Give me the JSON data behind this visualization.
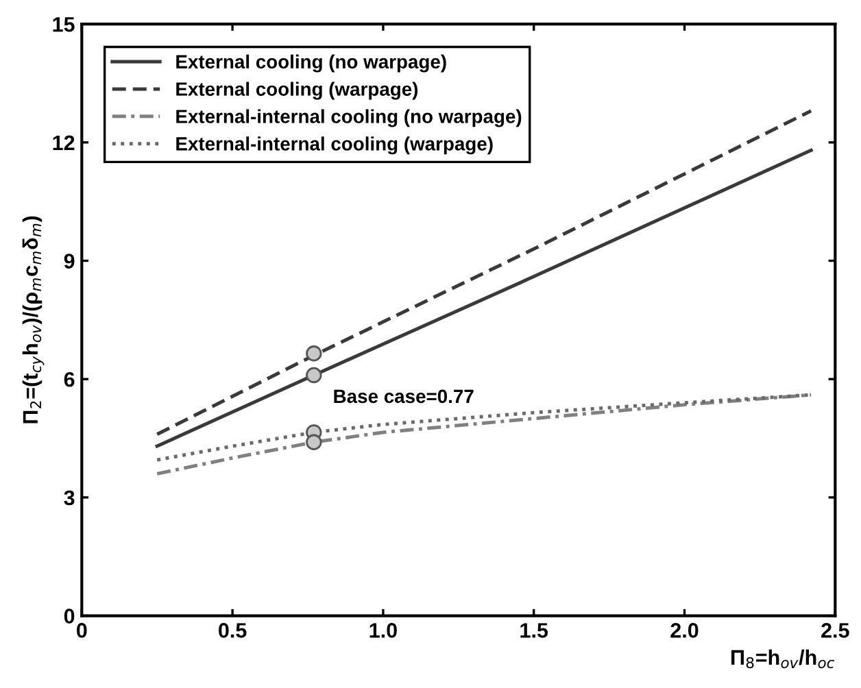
{
  "chart_data": {
    "type": "line",
    "xlabel": "Π$_{8}$=h$_{ov}$/h$_{oc}$",
    "ylabel": "Π$_{2}$=(t$_{cy}$h$_{ov}$)/(ρ$_{m}$c$_{m}$δ$_{m}$)",
    "xlim": [
      0,
      2.5
    ],
    "ylim": [
      0,
      15
    ],
    "xticks": [
      0,
      0.5,
      {
        "value": 1,
        "label": "1.0"
      },
      1.5,
      {
        "value": 2,
        "label": "2.0"
      },
      2.5
    ],
    "yticks": [
      0,
      3,
      6,
      9,
      12,
      15
    ],
    "grid": false,
    "legend": "top left",
    "series": [
      {
        "name": "External cooling (no warpage)",
        "color": "#3a3a3a",
        "line_style": "solid",
        "marker": "none",
        "x": [
          0.25,
          0.77,
          1.5,
          2.42
        ],
        "values": [
          4.3,
          6.1,
          8.6,
          11.8
        ]
      },
      {
        "name": "External cooling (warpage)",
        "color": "#3a3a3a",
        "line_style": "dashed",
        "marker": "none",
        "x": [
          0.25,
          0.77,
          1.5,
          2.42
        ],
        "values": [
          4.6,
          6.6,
          9.3,
          12.8
        ]
      },
      {
        "name": "External-internal cooling (no warpage)",
        "color": "#808080",
        "line_style": "dashdot",
        "marker": "none",
        "x": [
          0.25,
          0.5,
          0.77,
          1.0,
          1.5,
          2.0,
          2.42
        ],
        "values": [
          3.6,
          4.0,
          4.4,
          4.65,
          5.0,
          5.35,
          5.6
        ]
      },
      {
        "name": "External-internal cooling (warpage)",
        "color": "#6a6a6a",
        "line_style": "dotted",
        "marker": "none",
        "x": [
          0.25,
          0.5,
          0.77,
          1.0,
          1.5,
          2.0,
          2.42
        ],
        "values": [
          3.95,
          4.3,
          4.65,
          4.85,
          5.15,
          5.4,
          5.6
        ]
      },
      {
        "type": "scatter",
        "color": "#c8c8c8",
        "marker": "circle",
        "x": [
          0.77,
          0.77,
          0.77,
          0.77
        ],
        "values": [
          6.65,
          6.1,
          4.65,
          4.4
        ]
      }
    ],
    "annotations": [
      {
        "text": "Base case=0.77",
        "x": 0.77,
        "y": 6.1
      }
    ]
  }
}
